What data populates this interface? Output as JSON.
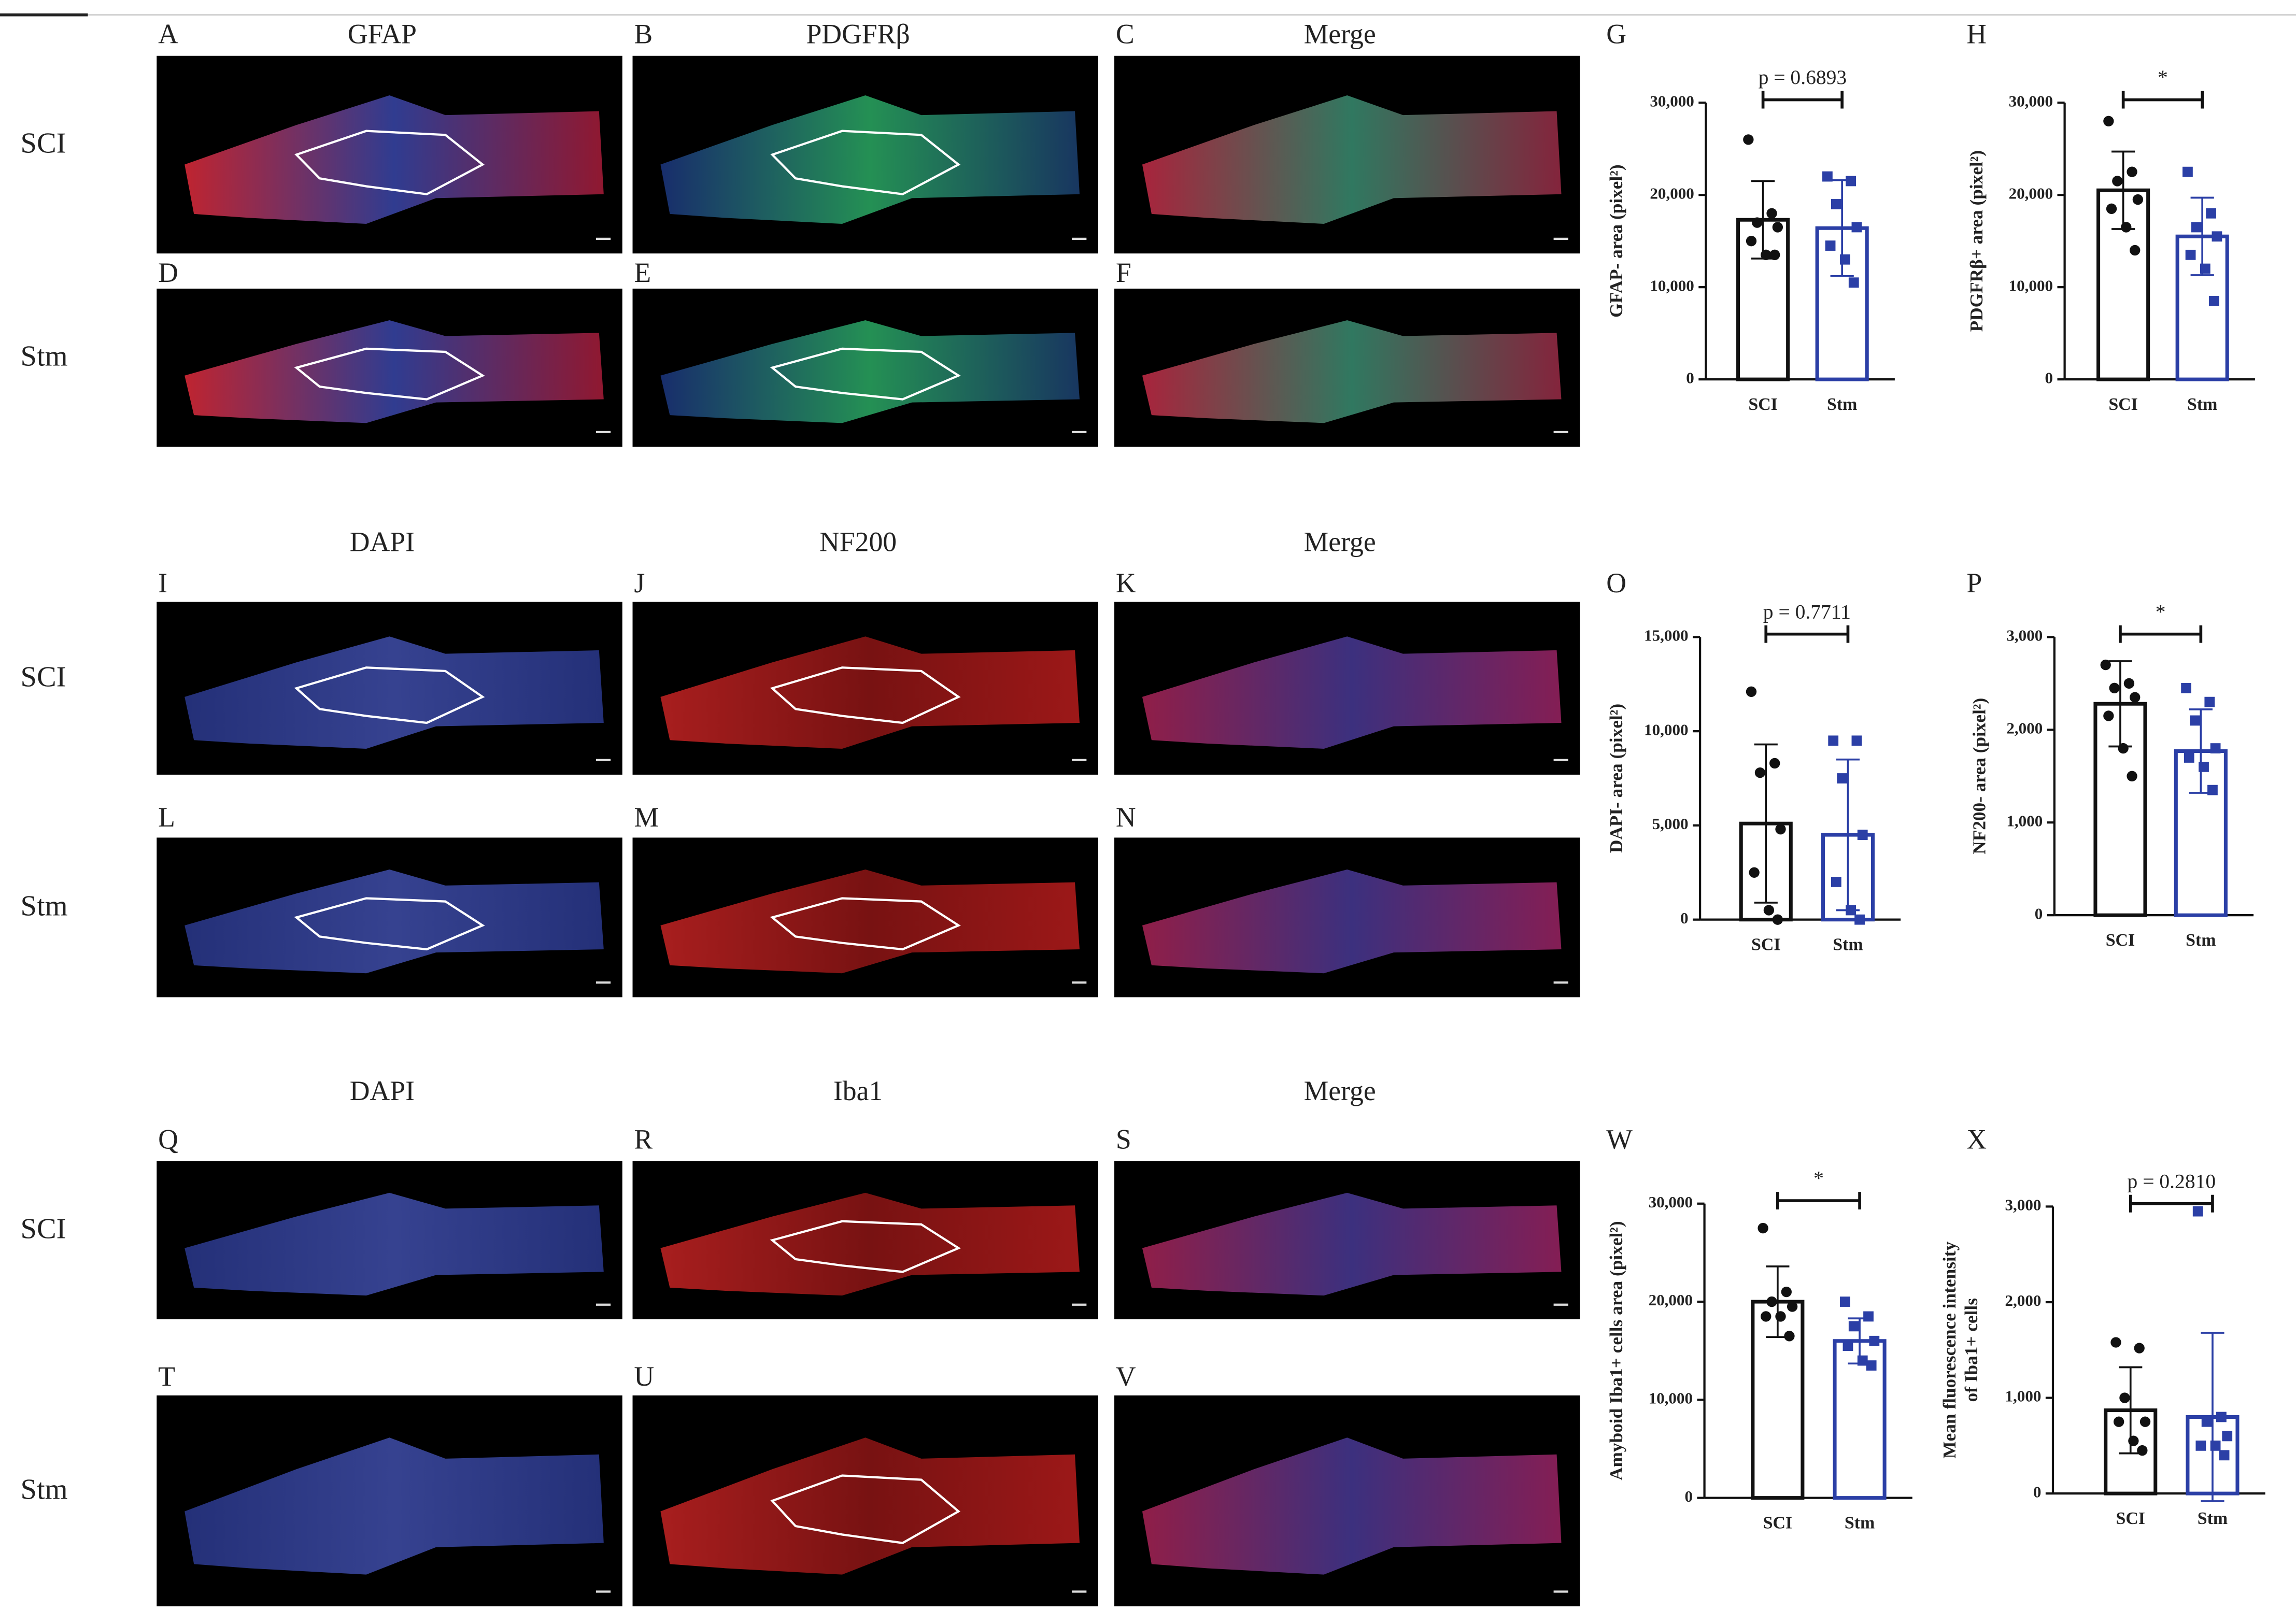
{
  "sections": [
    {
      "columns": [
        "GFAP",
        "PDGFRβ",
        "Merge"
      ],
      "rows": [
        "SCI",
        "Stm"
      ],
      "letters": [
        "A",
        "B",
        "C",
        "D",
        "E",
        "F"
      ]
    },
    {
      "columns": [
        "DAPI",
        "NF200",
        "Merge"
      ],
      "rows": [
        "SCI",
        "Stm"
      ],
      "letters": [
        "I",
        "J",
        "K",
        "L",
        "M",
        "N"
      ]
    },
    {
      "columns": [
        "DAPI",
        "Iba1",
        "Merge"
      ],
      "rows": [
        "SCI",
        "Stm"
      ],
      "letters": [
        "Q",
        "R",
        "S",
        "T",
        "U",
        "V"
      ]
    }
  ],
  "chart_data": [
    {
      "type": "bar",
      "panel": "G",
      "ylabel": [
        "GFAP- area (pixel²)"
      ],
      "categories": [
        "SCI",
        "Stm"
      ],
      "colors": [
        "#111111",
        "#2b3fa6"
      ],
      "markers": [
        "circle",
        "square"
      ],
      "values": [
        17300,
        16400
      ],
      "errors": [
        4200,
        5200
      ],
      "points": [
        [
          26000,
          18000,
          17000,
          16500,
          15000,
          13500,
          13500
        ],
        [
          22000,
          21500,
          19000,
          16500,
          14500,
          13000,
          10500
        ]
      ],
      "annotation": "p = 0.6893",
      "ylim": [
        0,
        30000
      ],
      "yticks": [
        0,
        {
          "value": 10000,
          "label": "10,000"
        },
        {
          "value": 20000,
          "label": "20,000"
        },
        {
          "value": 30000,
          "label": "30,000"
        }
      ]
    },
    {
      "type": "bar",
      "panel": "H",
      "ylabel": [
        "PDGFRβ+ area (pixel²)"
      ],
      "categories": [
        "SCI",
        "Stm"
      ],
      "colors": [
        "#111111",
        "#2b3fa6"
      ],
      "markers": [
        "circle",
        "square"
      ],
      "values": [
        20500,
        15500
      ],
      "errors": [
        4200,
        4200
      ],
      "points": [
        [
          28000,
          22500,
          21500,
          19500,
          18500,
          16500,
          14000
        ],
        [
          22500,
          18000,
          16500,
          15500,
          13500,
          12000,
          8500
        ]
      ],
      "annotation": "*",
      "ylim": [
        0,
        30000
      ],
      "yticks": [
        0,
        {
          "value": 10000,
          "label": "10,000"
        },
        {
          "value": 20000,
          "label": "20,000"
        },
        {
          "value": 30000,
          "label": "30,000"
        }
      ]
    },
    {
      "type": "bar",
      "panel": "O",
      "ylabel": [
        "DAPI- area (pixel²)"
      ],
      "categories": [
        "SCI",
        "Stm"
      ],
      "colors": [
        "#111111",
        "#2b3fa6"
      ],
      "markers": [
        "circle",
        "square"
      ],
      "values": [
        5100,
        4500
      ],
      "errors": [
        4200,
        4000
      ],
      "points": [
        [
          12100,
          8300,
          7800,
          4800,
          2500,
          500,
          0
        ],
        [
          9500,
          9500,
          7500,
          4500,
          2000,
          500,
          0
        ]
      ],
      "annotation": "p = 0.7711",
      "ylim": [
        0,
        15000
      ],
      "yticks": [
        0,
        {
          "value": 5000,
          "label": "5,000"
        },
        {
          "value": 10000,
          "label": "10,000"
        },
        {
          "value": 15000,
          "label": "15,000"
        }
      ]
    },
    {
      "type": "bar",
      "panel": "P",
      "ylabel": [
        "NF200- area (pixel²)"
      ],
      "categories": [
        "SCI",
        "Stm"
      ],
      "colors": [
        "#111111",
        "#2b3fa6"
      ],
      "markers": [
        "circle",
        "square"
      ],
      "values": [
        2280,
        1770
      ],
      "errors": [
        460,
        450
      ],
      "points": [
        [
          2700,
          2500,
          2450,
          2350,
          2150,
          1800,
          1500
        ],
        [
          2450,
          2300,
          2100,
          1800,
          1700,
          1600,
          1350
        ]
      ],
      "annotation": "*",
      "ylim": [
        0,
        3000
      ],
      "yticks": [
        0,
        {
          "value": 1000,
          "label": "1,000"
        },
        {
          "value": 2000,
          "label": "2,000"
        },
        {
          "value": 3000,
          "label": "3,000"
        }
      ]
    },
    {
      "type": "bar",
      "panel": "W",
      "ylabel": [
        "Amyboid Iba1+ cells area (pixel²)"
      ],
      "categories": [
        "SCI",
        "Stm"
      ],
      "colors": [
        "#111111",
        "#2b3fa6"
      ],
      "markers": [
        "circle",
        "square"
      ],
      "values": [
        20000,
        16000
      ],
      "errors": [
        3600,
        2300
      ],
      "points": [
        [
          27500,
          21000,
          20000,
          19500,
          18500,
          18500,
          16500
        ],
        [
          20000,
          18500,
          17500,
          16000,
          15500,
          14000,
          13500
        ]
      ],
      "annotation": "*",
      "ylim": [
        0,
        30000
      ],
      "yticks": [
        0,
        {
          "value": 10000,
          "label": "10,000"
        },
        {
          "value": 20000,
          "label": "20,000"
        },
        {
          "value": 30000,
          "label": "30,000"
        }
      ]
    },
    {
      "type": "bar",
      "panel": "X",
      "ylabel": [
        "Mean fluorescence intensity",
        "of Iba1+ cells"
      ],
      "categories": [
        "SCI",
        "Stm"
      ],
      "colors": [
        "#111111",
        "#2b3fa6"
      ],
      "markers": [
        "circle",
        "square"
      ],
      "values": [
        870,
        800
      ],
      "errors": [
        450,
        880
      ],
      "points": [
        [
          1580,
          1520,
          1000,
          750,
          750,
          550,
          450
        ],
        [
          2950,
          800,
          750,
          600,
          500,
          500,
          400
        ]
      ],
      "annotation": "p = 0.2810",
      "ylim": [
        0,
        3000
      ],
      "yticks": [
        0,
        {
          "value": 1000,
          "label": "1,000"
        },
        {
          "value": 2000,
          "label": "2,000"
        },
        {
          "value": 3000,
          "label": "3,000"
        }
      ]
    }
  ]
}
